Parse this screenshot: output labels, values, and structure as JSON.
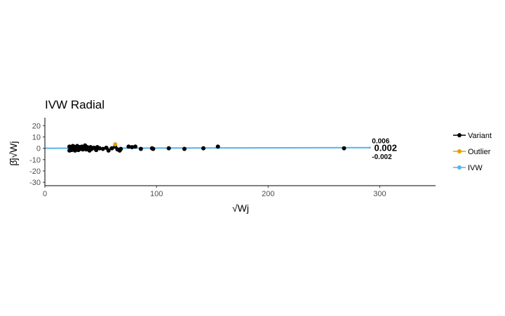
{
  "chart_data": {
    "type": "scatter",
    "title": "IVW Radial",
    "xlabel": "√Wj",
    "ylabel": "β̂j√Wj",
    "xlim": [
      0,
      350
    ],
    "ylim": [
      -33,
      27
    ],
    "x_ticks": [
      0,
      100,
      200,
      300
    ],
    "y_ticks": [
      -30,
      -20,
      -10,
      0,
      10,
      20
    ],
    "x_tick_labels": [
      "0",
      "100",
      "200",
      "300"
    ],
    "y_tick_labels": [
      "-30",
      "-20",
      "-10",
      "0",
      "10",
      "20"
    ],
    "grid": false,
    "legend_position": "right",
    "legend": [
      {
        "name": "Variant",
        "color": "#000000"
      },
      {
        "name": "Outlier",
        "color": "#E69F00"
      },
      {
        "name": "IVW",
        "color": "#56B4E9"
      }
    ],
    "series": [
      {
        "name": "Variant",
        "color": "#000000",
        "points": [
          [
            22,
            1.5
          ],
          [
            22,
            -2
          ],
          [
            23,
            0.5
          ],
          [
            23,
            -1
          ],
          [
            24,
            1
          ],
          [
            24,
            -1.5
          ],
          [
            25,
            2
          ],
          [
            25,
            0
          ],
          [
            26,
            -1
          ],
          [
            26,
            1.5
          ],
          [
            27,
            0.5
          ],
          [
            27,
            -2
          ],
          [
            28,
            1
          ],
          [
            28,
            -0.5
          ],
          [
            29,
            2
          ],
          [
            30,
            0
          ],
          [
            30,
            -1.5
          ],
          [
            31,
            1
          ],
          [
            32,
            -0.5
          ],
          [
            33,
            1.5
          ],
          [
            34,
            -1
          ],
          [
            35,
            0.5
          ],
          [
            36,
            2.5
          ],
          [
            37,
            -1
          ],
          [
            38,
            1
          ],
          [
            39,
            0
          ],
          [
            40,
            -2
          ],
          [
            41,
            1
          ],
          [
            42,
            -0.5
          ],
          [
            44,
            0.5
          ],
          [
            46,
            -1.5
          ],
          [
            47,
            1
          ],
          [
            49,
            0
          ],
          [
            52,
            -0.5
          ],
          [
            55,
            0.5
          ],
          [
            57,
            -2
          ],
          [
            60,
            0
          ],
          [
            63,
            1.5
          ],
          [
            65,
            -1
          ],
          [
            67,
            -2
          ],
          [
            68,
            -0.5
          ],
          [
            75,
            1.5
          ],
          [
            78,
            1
          ],
          [
            81,
            1.5
          ],
          [
            86,
            -0.5
          ],
          [
            96,
            0
          ],
          [
            97,
            -0.5
          ],
          [
            111,
            0
          ],
          [
            125,
            -0.5
          ],
          [
            142,
            0
          ],
          [
            155,
            1.5
          ],
          [
            268,
            0
          ]
        ]
      },
      {
        "name": "Outlier",
        "color": "#E69F00",
        "points": [
          [
            63,
            3.5
          ]
        ]
      }
    ],
    "lines": [
      {
        "name": "IVW",
        "color": "#56B4E9",
        "x": [
          0,
          291
        ],
        "slope": 0.002
      }
    ],
    "annotations": [
      {
        "text": "0.006",
        "x": 293,
        "y": 7
      },
      {
        "text": "0.002",
        "x": 295,
        "y": 0
      },
      {
        "text": "-0.002",
        "x": 293,
        "y": -7
      }
    ]
  }
}
